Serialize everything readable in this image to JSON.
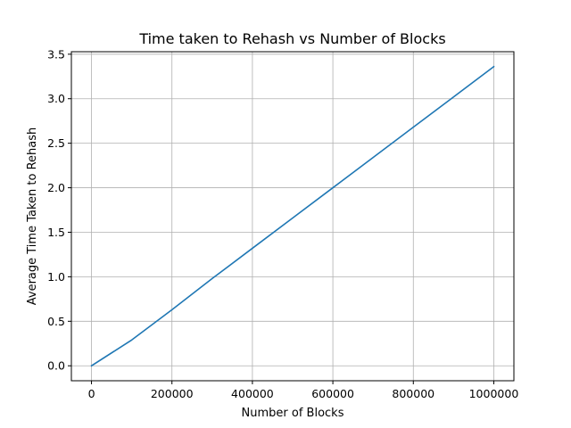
{
  "chart_data": {
    "type": "line",
    "title": "Time taken to Rehash vs Number of Blocks",
    "xlabel": "Number of Blocks",
    "ylabel": "Average Time Taken to Rehash",
    "xlim": [
      -50000,
      1050000
    ],
    "ylim": [
      -0.168,
      3.528
    ],
    "xticks": [
      0,
      200000,
      400000,
      600000,
      800000,
      1000000
    ],
    "xtick_labels": [
      "0",
      "200000",
      "400000",
      "600000",
      "800000",
      "1000000"
    ],
    "yticks": [
      0.0,
      0.5,
      1.0,
      1.5,
      2.0,
      2.5,
      3.0,
      3.5
    ],
    "ytick_labels": [
      "0.0",
      "0.5",
      "1.0",
      "1.5",
      "2.0",
      "2.5",
      "3.0",
      "3.5"
    ],
    "grid": true,
    "series": [
      {
        "color": "#1f77b4",
        "x": [
          0,
          100000,
          200000,
          300000,
          400000,
          500000,
          600000,
          700000,
          800000,
          900000,
          1000000
        ],
        "y": [
          0.0,
          0.29,
          0.63,
          0.98,
          1.32,
          1.66,
          2.0,
          2.34,
          2.68,
          3.02,
          3.36
        ]
      }
    ]
  }
}
